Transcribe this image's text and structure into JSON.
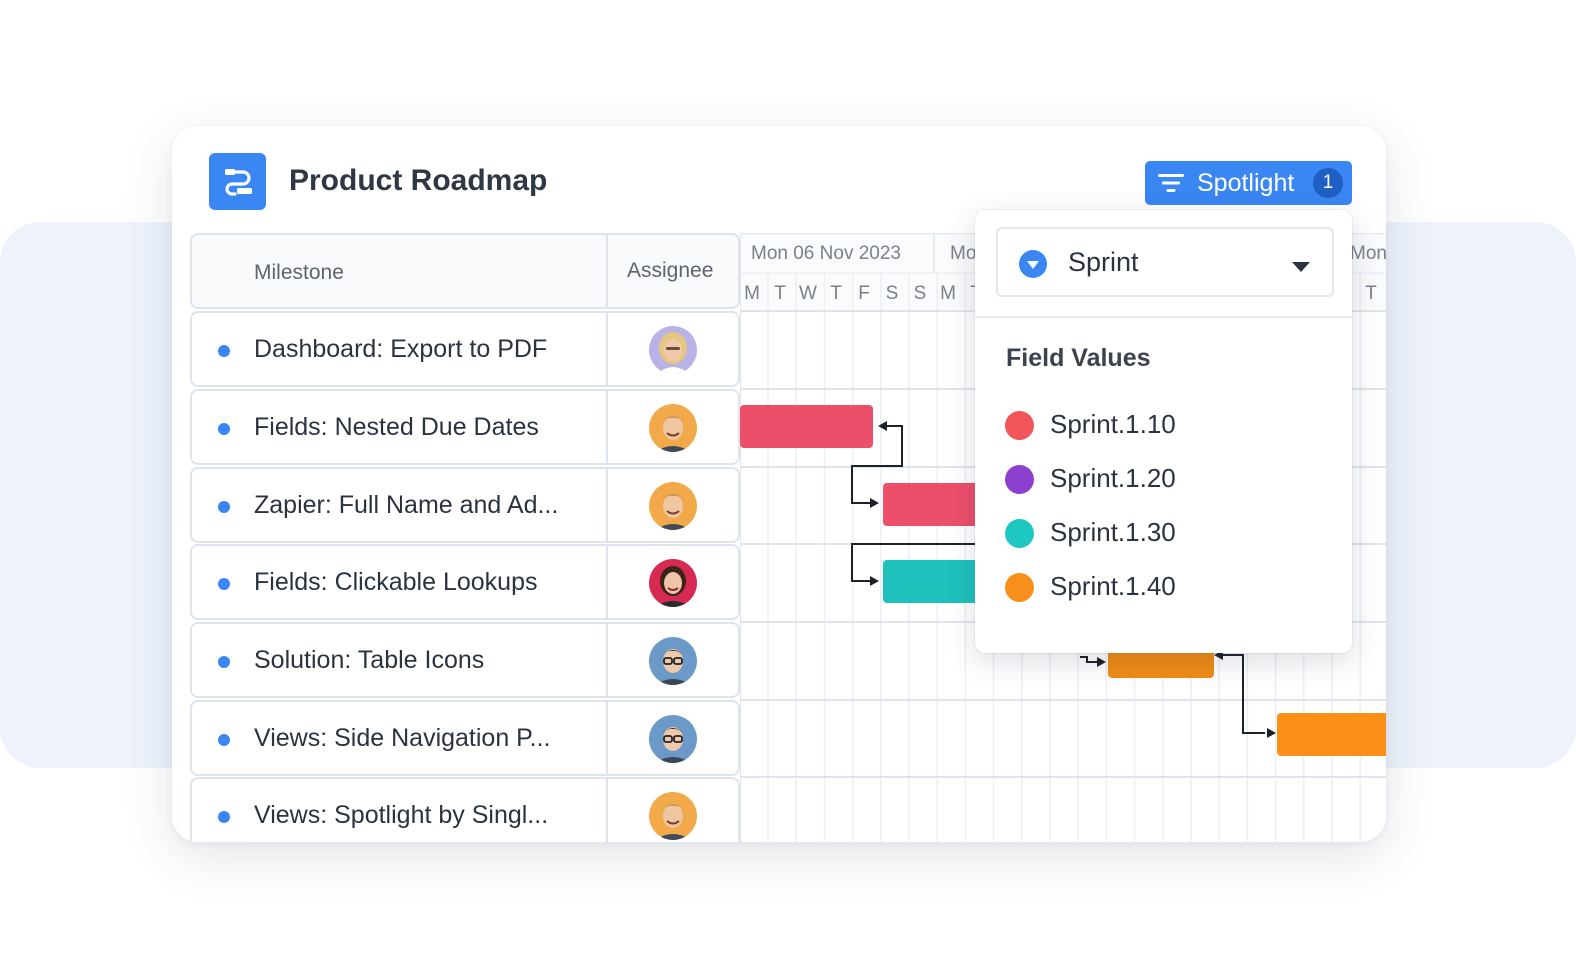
{
  "header": {
    "title": "Product Roadmap",
    "spotlight_label": "Spotlight",
    "spotlight_count": "1"
  },
  "table": {
    "milestone_header": "Milestone",
    "assignee_header": "Assignee",
    "rows": [
      {
        "name": "Dashboard: Export to PDF",
        "avatar": "avatar-blonde-woman"
      },
      {
        "name": "Fields: Nested Due Dates",
        "avatar": "avatar-smiling-man"
      },
      {
        "name": "Zapier: Full Name and Ad...",
        "avatar": "avatar-smiling-man"
      },
      {
        "name": "Fields: Clickable Lookups",
        "avatar": "avatar-dark-haired-woman"
      },
      {
        "name": "Solution: Table Icons",
        "avatar": "avatar-man-with-glasses"
      },
      {
        "name": "Views: Side Navigation P...",
        "avatar": "avatar-man-with-glasses"
      },
      {
        "name": "Views: Spotlight by Singl...",
        "avatar": "avatar-smiling-man"
      }
    ]
  },
  "timeline": {
    "weeks": [
      "Mon 06 Nov 2023",
      "Mo",
      "Mon"
    ],
    "days": [
      "M",
      "T",
      "W",
      "T",
      "F",
      "S",
      "S",
      "M",
      "T",
      "T"
    ],
    "bars": [
      {
        "row": 1,
        "sprint": "Sprint.1.10"
      },
      {
        "row": 2,
        "sprint": "Sprint.1.10"
      },
      {
        "row": 3,
        "sprint": "Sprint.1.30"
      },
      {
        "row": 4,
        "sprint": "Sprint.1.40"
      },
      {
        "row": 5,
        "sprint": "Sprint.1.40"
      }
    ]
  },
  "spotlight_popup": {
    "field": "Sprint",
    "field_values_title": "Field Values",
    "options": [
      {
        "label": "Sprint.1.10",
        "color": "#f2555a"
      },
      {
        "label": "Sprint.1.20",
        "color": "#8d3fd0"
      },
      {
        "label": "Sprint.1.30",
        "color": "#1ec7c2"
      },
      {
        "label": "Sprint.1.40",
        "color": "#f88e1c"
      }
    ]
  },
  "colors": {
    "accent": "#3a86f3",
    "bar_red": "#ec4f6a",
    "bar_teal": "#1ec1bc",
    "bar_orange_dark": "#f08c15",
    "bar_orange": "#fa9018"
  }
}
